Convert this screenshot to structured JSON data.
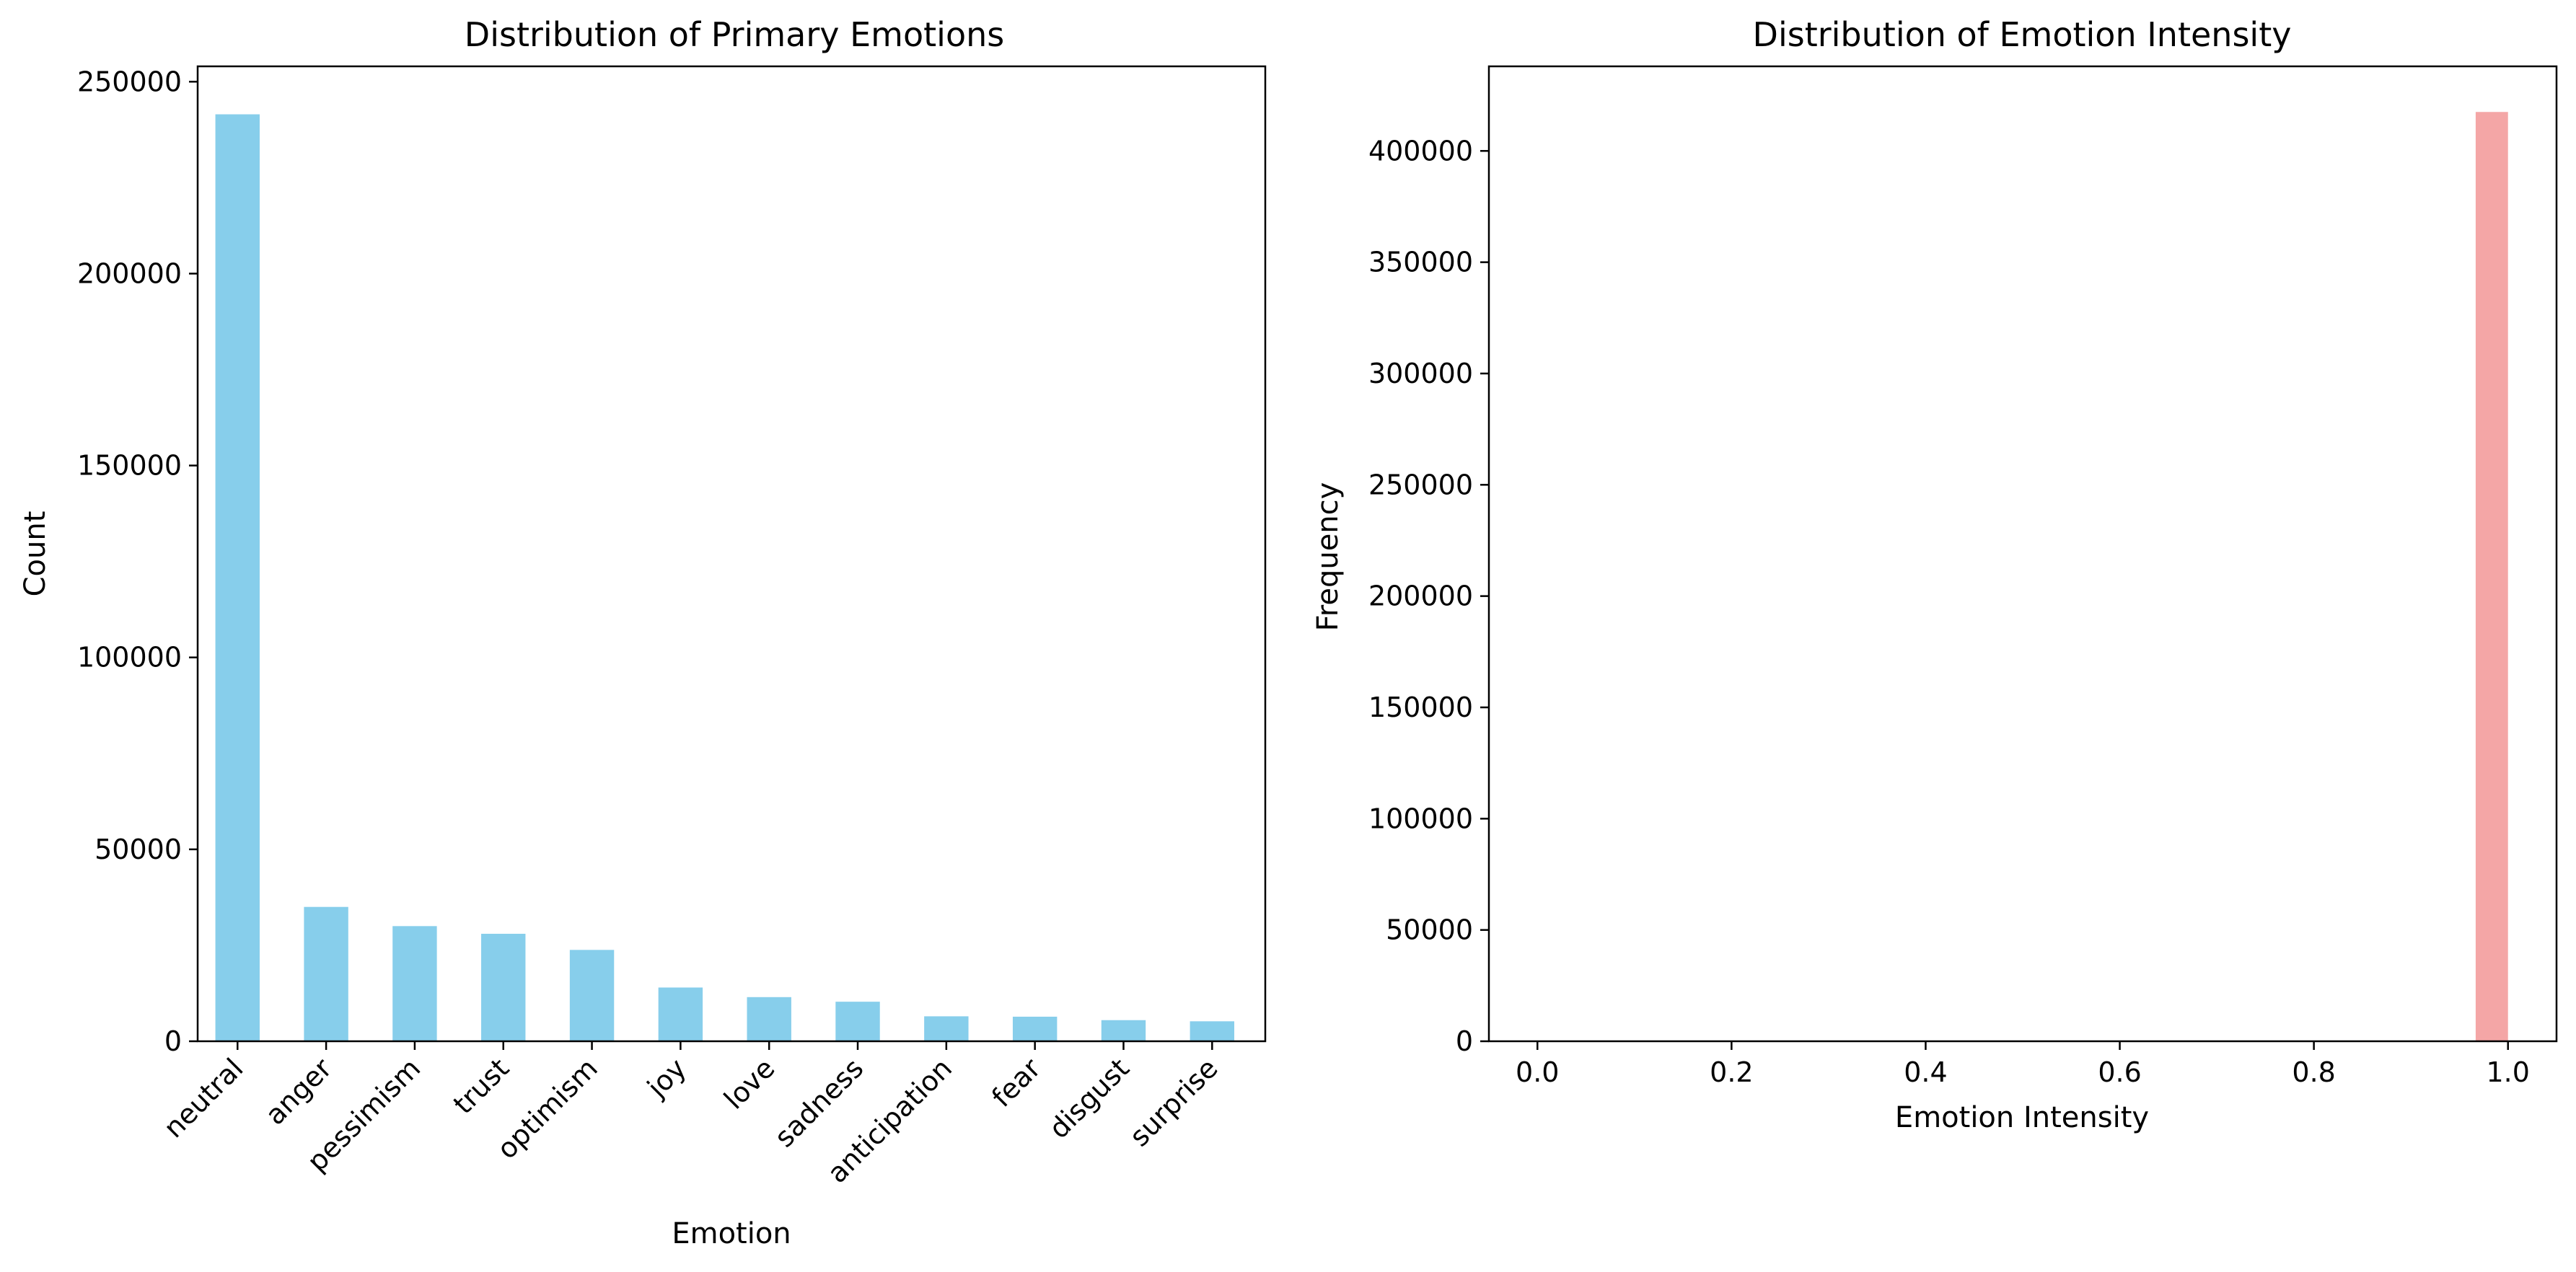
{
  "colors": {
    "bar_left": "#87CEEB",
    "bar_right": "#F4A6A6",
    "axis": "#000000",
    "background": "#FFFFFF"
  },
  "chart_data": [
    {
      "type": "bar",
      "title": "Distribution of Primary Emotions",
      "xlabel": "Emotion",
      "ylabel": "Count",
      "categories": [
        "neutral",
        "anger",
        "pessimism",
        "trust",
        "optimism",
        "joy",
        "love",
        "sadness",
        "anticipation",
        "fear",
        "disgust",
        "surprise"
      ],
      "values": [
        241500,
        35000,
        30000,
        28000,
        23800,
        14000,
        11500,
        10300,
        6500,
        6400,
        5500,
        5200
      ],
      "ylim": [
        0,
        254000
      ],
      "yticks": [
        0,
        50000,
        100000,
        150000,
        200000,
        250000
      ],
      "ytick_labels": [
        "0",
        "50000",
        "100000",
        "150000",
        "200000",
        "250000"
      ],
      "grid": false,
      "color": "#87CEEB"
    },
    {
      "type": "bar",
      "title": "Distribution of Emotion Intensity",
      "xlabel": "Emotion Intensity",
      "ylabel": "Frequency",
      "histogram": true,
      "bin_width": 0.0333,
      "bins": [
        {
          "x0": 0.9667,
          "x1": 1.0,
          "count": 417500
        }
      ],
      "xlim": [
        -0.05,
        1.05
      ],
      "ylim": [
        0,
        438000
      ],
      "xticks": [
        0.0,
        0.2,
        0.4,
        0.6,
        0.8,
        1.0
      ],
      "xtick_labels": [
        "0.0",
        "0.2",
        "0.4",
        "0.6",
        "0.8",
        "1.0"
      ],
      "yticks": [
        0,
        50000,
        100000,
        150000,
        200000,
        250000,
        300000,
        350000,
        400000
      ],
      "ytick_labels": [
        "0",
        "50000",
        "100000",
        "150000",
        "200000",
        "250000",
        "300000",
        "350000",
        "400000"
      ],
      "grid": false,
      "color": "#F4A6A6"
    }
  ]
}
